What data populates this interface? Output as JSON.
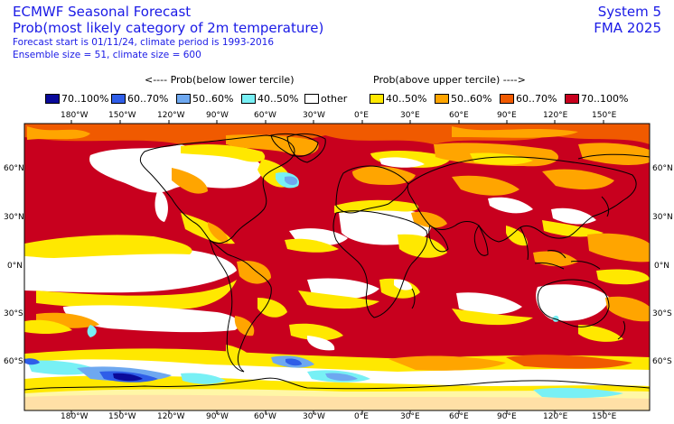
{
  "header": {
    "title": "ECMWF Seasonal Forecast",
    "subtitle": "Prob(most likely category of 2m temperature)",
    "forecast_line": "Forecast start is 01/11/24, climate period is 1993-2016",
    "ensemble_line": "Ensemble size = 51, climate size = 600",
    "system": "System 5",
    "season": "FMA 2025"
  },
  "legend": {
    "below_heading": "<---- Prob(below lower tercile)",
    "above_heading": "Prob(above upper tercile) ---->",
    "items": [
      {
        "label": "70..100%",
        "color": "#0a0a9a"
      },
      {
        "label": "60..70%",
        "color": "#2f5ee8"
      },
      {
        "label": "50..60%",
        "color": "#6ea8f0"
      },
      {
        "label": "40..50%",
        "color": "#78f0f5"
      },
      {
        "label": "other",
        "color": "#ffffff"
      },
      {
        "label": "40..50%",
        "color": "#ffe800"
      },
      {
        "label": "50..60%",
        "color": "#ffa500"
      },
      {
        "label": "60..70%",
        "color": "#f05a00"
      },
      {
        "label": "70..100%",
        "color": "#c8001e"
      }
    ]
  },
  "axes": {
    "lon_labels": [
      "180°W",
      "150°W",
      "120°W",
      "90°W",
      "60°W",
      "30°W",
      "0°E",
      "30°E",
      "60°E",
      "90°E",
      "120°E",
      "150°E"
    ],
    "lat_labels": [
      "60°N",
      "30°N",
      "0°N",
      "30°S",
      "60°S"
    ]
  }
}
